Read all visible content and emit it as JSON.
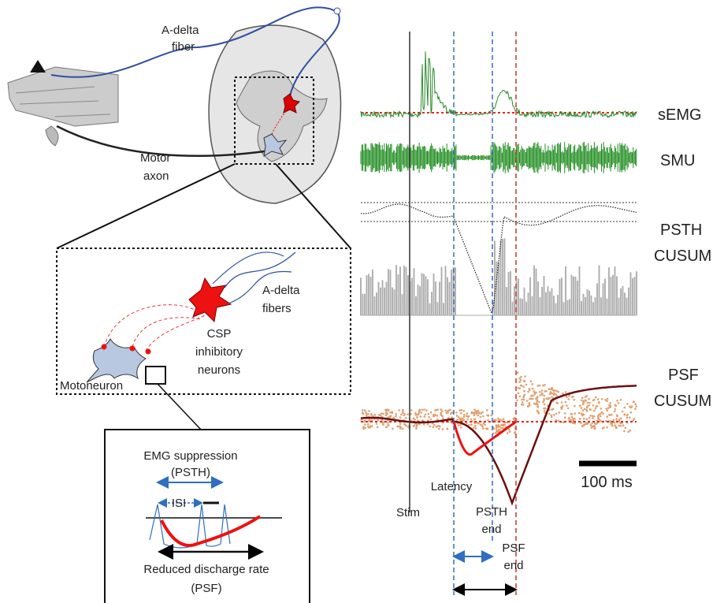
{
  "left": {
    "a_delta_fiber": [
      "A-delta",
      "fiber"
    ],
    "motor_axon": [
      "Motor",
      "axon"
    ],
    "a_delta_fibers": [
      "A-delta",
      "fibers"
    ],
    "csp_neurons": [
      "CSP",
      "inhibitory",
      "neurons"
    ],
    "motoneuron": "Motoneuron",
    "emg_suppression": [
      "EMG suppression",
      "(PSTH)"
    ],
    "isi": "ISI",
    "reduced_rate": [
      "Reduced discharge rate",
      "(PSF)"
    ]
  },
  "right": {
    "semg": "sEMG",
    "smu": "SMU",
    "psth_cusum": [
      "PSTH",
      "CUSUM"
    ],
    "psf_cusum": [
      "PSF",
      "CUSUM"
    ],
    "scale": "100 ms",
    "stim": "Stim",
    "latency": "Latency",
    "psth_end": [
      "PSTH",
      "end"
    ],
    "psf_end": [
      "PSF",
      "end"
    ]
  }
}
